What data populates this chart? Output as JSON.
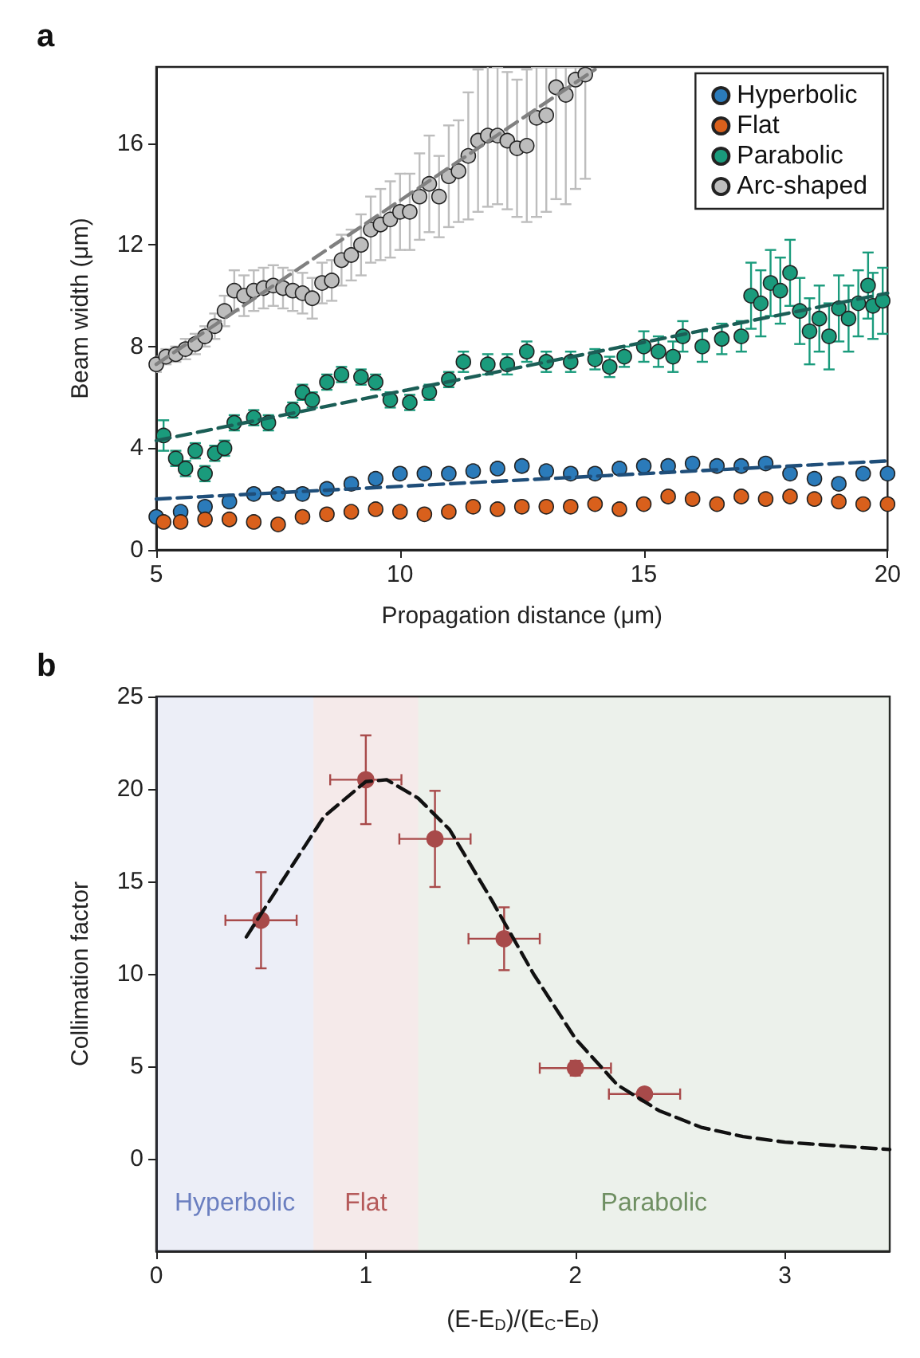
{
  "chart_data": [
    {
      "type": "scatter",
      "title": "a",
      "xlabel": "Propagation distance (μm)",
      "ylabel": "Beam width (μm)",
      "xlim": [
        5,
        20
      ],
      "xticks": [
        5,
        10,
        15,
        20
      ],
      "ylim": [
        0,
        19
      ],
      "yticks": [
        0,
        4,
        8,
        12,
        16
      ],
      "grid": false,
      "legend": "top right",
      "marker": "circle",
      "series": [
        {
          "name": "Hyperbolic",
          "color": "#2b7bba",
          "x": [
            5,
            5.5,
            6,
            6.5,
            7,
            7.5,
            8,
            8.5,
            9,
            9.5,
            10,
            10.5,
            11,
            11.5,
            12,
            12.5,
            13,
            13.5,
            14,
            14.5,
            15,
            15.5,
            16,
            16.5,
            17,
            17.5,
            18,
            18.5,
            19,
            19.5,
            20
          ],
          "values": [
            1.3,
            1.5,
            1.7,
            1.9,
            2.2,
            2.2,
            2.2,
            2.4,
            2.6,
            2.8,
            3.0,
            3.0,
            3.0,
            3.1,
            3.2,
            3.3,
            3.1,
            3.0,
            3.0,
            3.2,
            3.3,
            3.3,
            3.4,
            3.3,
            3.3,
            3.4,
            3.0,
            2.8,
            2.6,
            3.0,
            3.0
          ],
          "errors": [
            0.2,
            0.2,
            0.2,
            0.2,
            0.2,
            0.2,
            0.2,
            0.2,
            0.2,
            0.2,
            0.2,
            0.2,
            0.2,
            0.2,
            0.2,
            0.2,
            0.2,
            0.2,
            0.2,
            0.2,
            0.2,
            0.2,
            0.2,
            0.2,
            0.2,
            0.2,
            0.2,
            0.2,
            0.2,
            0.2,
            0.2
          ]
        },
        {
          "name": "Flat",
          "color": "#d9601c",
          "x": [
            5.15,
            5.5,
            6,
            6.5,
            7,
            7.5,
            8,
            8.5,
            9,
            9.5,
            10,
            10.5,
            11,
            11.5,
            12,
            12.5,
            13,
            13.5,
            14,
            14.5,
            15,
            15.5,
            16,
            16.5,
            17,
            17.5,
            18,
            18.5,
            19,
            19.5,
            20
          ],
          "values": [
            1.1,
            1.1,
            1.2,
            1.2,
            1.1,
            1.0,
            1.3,
            1.4,
            1.5,
            1.6,
            1.5,
            1.4,
            1.5,
            1.7,
            1.6,
            1.7,
            1.7,
            1.7,
            1.8,
            1.6,
            1.8,
            2.1,
            2.0,
            1.8,
            2.1,
            2.0,
            2.1,
            2.0,
            1.9,
            1.8,
            1.8
          ],
          "errors": [
            0.15,
            0.15,
            0.15,
            0.15,
            0.15,
            0.15,
            0.15,
            0.15,
            0.15,
            0.15,
            0.15,
            0.15,
            0.15,
            0.15,
            0.15,
            0.15,
            0.15,
            0.15,
            0.15,
            0.15,
            0.15,
            0.15,
            0.15,
            0.15,
            0.15,
            0.15,
            0.15,
            0.15,
            0.15,
            0.15,
            0.15
          ]
        },
        {
          "name": "Parabolic",
          "color": "#1a9b7c",
          "x": [
            5.15,
            5.4,
            5.6,
            5.8,
            6.0,
            6.2,
            6.4,
            6.6,
            7.0,
            7.3,
            7.8,
            8.0,
            8.2,
            8.5,
            8.8,
            9.2,
            9.5,
            9.8,
            10.2,
            10.6,
            11.0,
            11.3,
            11.8,
            12.2,
            12.6,
            13.0,
            13.5,
            14.0,
            14.3,
            14.6,
            15.0,
            15.3,
            15.6,
            15.8,
            16.2,
            16.6,
            17.0,
            17.2,
            17.4,
            17.6,
            17.8,
            18.0,
            18.2,
            18.4,
            18.6,
            18.8,
            19.0,
            19.2,
            19.4,
            19.6,
            19.7,
            19.9
          ],
          "values": [
            4.5,
            3.6,
            3.2,
            3.9,
            3.0,
            3.8,
            4.0,
            5.0,
            5.2,
            5.0,
            5.5,
            6.2,
            5.9,
            6.6,
            6.9,
            6.8,
            6.6,
            5.9,
            5.8,
            6.2,
            6.7,
            7.4,
            7.3,
            7.3,
            7.8,
            7.4,
            7.4,
            7.5,
            7.2,
            7.6,
            8.0,
            7.8,
            7.6,
            8.4,
            8.0,
            8.3,
            8.4,
            10.0,
            9.7,
            10.5,
            10.2,
            10.9,
            9.4,
            8.6,
            9.1,
            8.4,
            9.5,
            9.1,
            9.7,
            10.4,
            9.6,
            9.8
          ],
          "errors": [
            0.6,
            0.3,
            0.3,
            0.3,
            0.3,
            0.3,
            0.3,
            0.3,
            0.3,
            0.3,
            0.3,
            0.3,
            0.3,
            0.3,
            0.3,
            0.3,
            0.3,
            0.3,
            0.3,
            0.3,
            0.3,
            0.4,
            0.4,
            0.4,
            0.4,
            0.4,
            0.4,
            0.4,
            0.4,
            0.4,
            0.6,
            0.6,
            0.6,
            0.6,
            0.6,
            0.6,
            0.6,
            1.3,
            1.3,
            1.3,
            1.3,
            1.3,
            1.3,
            1.3,
            1.3,
            1.3,
            1.3,
            1.3,
            1.3,
            1.3,
            1.3,
            1.3
          ]
        },
        {
          "name": "Arc-shaped",
          "color": "#bdbdbd",
          "x": [
            5.0,
            5.2,
            5.4,
            5.6,
            5.8,
            6.0,
            6.2,
            6.4,
            6.6,
            6.8,
            7.0,
            7.2,
            7.4,
            7.6,
            7.8,
            8.0,
            8.2,
            8.4,
            8.6,
            8.8,
            9.0,
            9.2,
            9.4,
            9.6,
            9.8,
            10.0,
            10.2,
            10.4,
            10.6,
            10.8,
            11.0,
            11.2,
            11.4,
            11.6,
            11.8,
            12.0,
            12.2,
            12.4,
            12.6,
            12.8,
            13.0,
            13.2,
            13.4,
            13.6,
            13.8
          ],
          "values": [
            7.3,
            7.6,
            7.7,
            7.9,
            8.1,
            8.4,
            8.8,
            9.4,
            10.2,
            10.0,
            10.2,
            10.3,
            10.4,
            10.3,
            10.2,
            10.1,
            9.9,
            10.5,
            10.6,
            11.4,
            11.6,
            12.0,
            12.6,
            12.8,
            13.0,
            13.3,
            13.3,
            13.9,
            14.4,
            13.9,
            14.7,
            14.9,
            15.5,
            16.1,
            16.3,
            16.3,
            16.1,
            15.8,
            15.9,
            17.0,
            17.1,
            18.2,
            17.9,
            18.5,
            18.7
          ],
          "errors": [
            0.3,
            0.3,
            0.3,
            0.4,
            0.4,
            0.4,
            0.5,
            0.6,
            0.8,
            0.8,
            0.8,
            0.8,
            0.8,
            0.8,
            0.8,
            0.8,
            0.8,
            0.8,
            0.8,
            1.0,
            1.0,
            1.2,
            1.3,
            1.4,
            1.5,
            1.5,
            1.5,
            1.7,
            1.9,
            1.6,
            2.0,
            2.0,
            2.5,
            2.8,
            2.8,
            2.7,
            2.7,
            2.7,
            3.0,
            [
              13.1,
              19
            ],
            [
              13.3,
              19
            ],
            [
              13.8,
              19
            ],
            [
              13.6,
              19
            ],
            [
              14.2,
              19
            ],
            [
              14.6,
              19
            ]
          ]
        },
        {
          "type": "line",
          "marker": "none",
          "color": "#1f4e79",
          "line_style": "dashed",
          "x": [
            5,
            20
          ],
          "values": [
            2.0,
            3.5
          ]
        },
        {
          "type": "line",
          "marker": "none",
          "color": "#1b5e56",
          "line_style": "dashed",
          "x": [
            5,
            20
          ],
          "values": [
            4.3,
            10.1
          ]
        },
        {
          "type": "line",
          "marker": "none",
          "color": "#808080",
          "line_style": "dashed",
          "x": [
            5,
            14
          ],
          "values": [
            7.3,
            18.9
          ]
        }
      ]
    },
    {
      "type": "scatter",
      "title": "b",
      "xlabel": "(E-E$_{D}$)/(E$_{C}$-E$_{D}$)",
      "ylabel": "Collimation factor",
      "xlim": [
        0,
        3.5
      ],
      "xticks": [
        0,
        1,
        2,
        3
      ],
      "ylim": [
        -5,
        25
      ],
      "yticks": [
        0,
        5,
        10,
        15,
        20,
        25
      ],
      "grid": false,
      "marker": "circle",
      "bands": [
        {
          "axis": "x",
          "from": 0,
          "to": 0.75,
          "label": "Hyperbolic",
          "color": "#6b7fc0"
        },
        {
          "axis": "x",
          "from": 0.75,
          "to": 1.25,
          "label": "Flat",
          "color": "#b55a5a"
        },
        {
          "axis": "x",
          "from": 1.25,
          "to": 3.5,
          "label": "Parabolic",
          "color": "#6f8f62"
        }
      ],
      "series": [
        {
          "color": "#a84a4a",
          "x": [
            0.5,
            1.0,
            1.33,
            1.66,
            2.0,
            2.33
          ],
          "values": [
            12.9,
            20.5,
            17.3,
            11.9,
            4.9,
            3.5
          ],
          "errors": [
            2.6,
            2.4,
            2.6,
            1.7,
            0.4,
            0.3
          ],
          "xerrors": [
            0.17,
            0.17,
            0.17,
            0.17,
            0.17,
            0.17
          ]
        },
        {
          "type": "line",
          "marker": "none",
          "color": "#111111",
          "line_style": "dashed",
          "x": [
            0.43,
            0.6,
            0.8,
            1.0,
            1.1,
            1.25,
            1.4,
            1.6,
            1.8,
            2.0,
            2.2,
            2.4,
            2.6,
            2.8,
            3.0,
            3.25,
            3.5
          ],
          "values": [
            12,
            15,
            18.5,
            20.4,
            20.5,
            19.5,
            17.8,
            14.0,
            10.0,
            6.5,
            4.0,
            2.6,
            1.7,
            1.2,
            0.9,
            0.7,
            0.5
          ]
        }
      ]
    }
  ]
}
